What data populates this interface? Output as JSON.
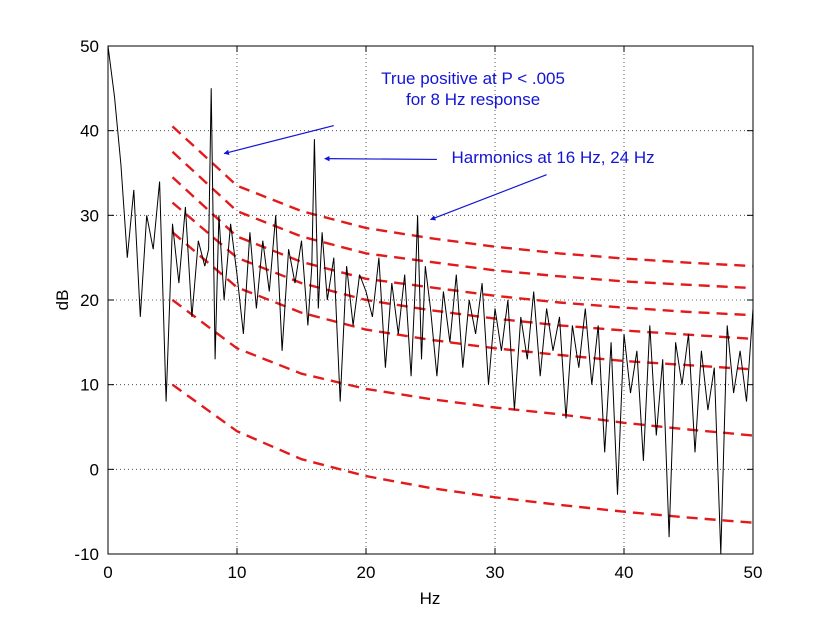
{
  "chart_data": {
    "type": "line",
    "title": "",
    "xlabel": "Hz",
    "ylabel": "dB",
    "xlim": [
      0,
      50
    ],
    "ylim": [
      -10,
      50
    ],
    "xticks": [
      "0",
      "10",
      "20",
      "30",
      "40",
      "50"
    ],
    "yticks": [
      "-10",
      "0",
      "10",
      "20",
      "30",
      "40",
      "50"
    ],
    "grid": true,
    "colors": {
      "spectrum": "#000000",
      "thresholds": "#e31a1c",
      "annotation": "#1414d6"
    },
    "series": [
      {
        "name": "spectrum",
        "style": "solid",
        "x": [
          0.0,
          0.5,
          1.0,
          1.5,
          2.0,
          2.5,
          3.0,
          3.5,
          4.0,
          4.5,
          5.0,
          5.5,
          6.0,
          6.5,
          7.0,
          7.5,
          7.8,
          8.0,
          8.3,
          8.6,
          9.0,
          9.5,
          10.0,
          10.5,
          11.0,
          11.5,
          12.0,
          12.5,
          13.0,
          13.5,
          14.0,
          14.5,
          15.0,
          15.5,
          15.8,
          16.0,
          16.3,
          16.6,
          17.0,
          17.5,
          18.0,
          18.5,
          19.0,
          19.5,
          20.0,
          20.5,
          21.0,
          21.5,
          22.0,
          22.5,
          23.0,
          23.5,
          23.8,
          24.0,
          24.3,
          24.6,
          25.0,
          25.5,
          26.0,
          26.5,
          27.0,
          27.5,
          28.0,
          28.5,
          29.0,
          29.5,
          30.0,
          30.5,
          31.0,
          31.5,
          32.0,
          32.5,
          33.0,
          33.5,
          34.0,
          34.5,
          35.0,
          35.5,
          36.0,
          36.5,
          37.0,
          37.5,
          38.0,
          38.5,
          39.0,
          39.5,
          40.0,
          40.5,
          41.0,
          41.5,
          42.0,
          42.5,
          43.0,
          43.5,
          44.0,
          44.5,
          45.0,
          45.5,
          46.0,
          46.5,
          47.0,
          47.5,
          48.0,
          48.5,
          49.0,
          49.5,
          50.0
        ],
        "y": [
          50,
          44,
          36,
          25,
          33,
          18,
          30,
          26,
          34,
          8,
          29,
          22,
          31,
          18,
          27,
          24,
          26,
          45,
          13,
          30,
          20,
          29,
          23,
          16,
          28,
          19,
          27,
          21,
          30,
          14,
          26,
          22,
          27,
          17,
          24,
          39,
          19,
          28,
          20,
          25,
          8,
          24,
          17,
          23,
          21,
          18,
          25,
          12,
          22,
          16,
          23,
          11,
          21,
          30,
          13,
          24,
          19,
          11,
          21,
          15,
          23,
          12,
          20,
          16,
          22,
          10,
          19,
          14,
          20,
          7,
          18,
          13,
          21,
          11,
          19,
          14,
          18,
          6,
          17,
          12,
          19,
          10,
          17,
          2,
          15,
          -3,
          16,
          9,
          14,
          1,
          17,
          4,
          13,
          -8,
          15,
          10,
          16,
          2,
          14,
          7,
          12,
          -10,
          17,
          9,
          14,
          8,
          19
        ]
      },
      {
        "name": "threshold-1",
        "style": "dashed",
        "x": [
          5,
          10,
          15,
          20,
          25,
          30,
          35,
          40,
          45,
          50
        ],
        "y": [
          40.5,
          33.5,
          30.5,
          28.5,
          27.3,
          26.3,
          25.5,
          24.9,
          24.4,
          24.0
        ]
      },
      {
        "name": "threshold-2",
        "style": "dashed",
        "x": [
          5,
          10,
          15,
          20,
          25,
          30,
          35,
          40,
          45,
          50
        ],
        "y": [
          37.5,
          30.5,
          27.5,
          25.5,
          24.5,
          23.5,
          22.8,
          22.2,
          21.8,
          21.4
        ]
      },
      {
        "name": "threshold-3",
        "style": "dashed",
        "x": [
          5,
          10,
          15,
          20,
          25,
          30,
          35,
          40,
          45,
          50
        ],
        "y": [
          34.5,
          27.5,
          24.5,
          22.5,
          21.5,
          20.5,
          19.7,
          19.1,
          18.6,
          18.2
        ]
      },
      {
        "name": "threshold-4",
        "style": "dashed",
        "x": [
          5,
          10,
          15,
          20,
          25,
          30,
          35,
          40,
          45,
          50
        ],
        "y": [
          31.5,
          25,
          22,
          20,
          18.8,
          17.8,
          17,
          16.4,
          15.9,
          15.4
        ]
      },
      {
        "name": "threshold-5",
        "style": "dashed",
        "x": [
          5,
          10,
          15,
          20,
          25,
          30,
          35,
          40,
          45,
          50
        ],
        "y": [
          28,
          21.5,
          18.5,
          16.5,
          15.3,
          14.3,
          13.5,
          12.8,
          12.3,
          11.8
        ]
      },
      {
        "name": "threshold-6",
        "style": "dashed",
        "x": [
          5,
          10,
          15,
          20,
          25,
          30,
          35,
          40,
          45,
          50
        ],
        "y": [
          20,
          14.3,
          11.3,
          9.5,
          8.3,
          7.3,
          6.5,
          5.5,
          4.7,
          4.0
        ]
      },
      {
        "name": "threshold-7",
        "style": "dashed",
        "x": [
          5,
          10,
          15,
          20,
          25,
          30,
          35,
          40,
          45,
          50
        ],
        "y": [
          10,
          4.5,
          1.2,
          -0.8,
          -2.2,
          -3.3,
          -4.2,
          -5,
          -5.7,
          -6.3
        ]
      }
    ],
    "annotations": [
      {
        "id": "true-positive",
        "lines": [
          "True positive at P < .005",
          "for 8 Hz response"
        ],
        "text_at": [
          28.3,
          45.5
        ],
        "arrows": [
          {
            "from": [
              17.5,
              40.6
            ],
            "to": [
              9.0,
              37.3
            ]
          }
        ]
      },
      {
        "id": "harmonics",
        "lines": [
          "Harmonics at 16 Hz, 24 Hz"
        ],
        "text_at": [
          34.5,
          36.2
        ],
        "arrows": [
          {
            "from": [
              25.5,
              36.6
            ],
            "to": [
              16.8,
              36.7
            ]
          },
          {
            "from": [
              34.0,
              34.8
            ],
            "to": [
              25.0,
              29.5
            ]
          }
        ]
      }
    ]
  }
}
